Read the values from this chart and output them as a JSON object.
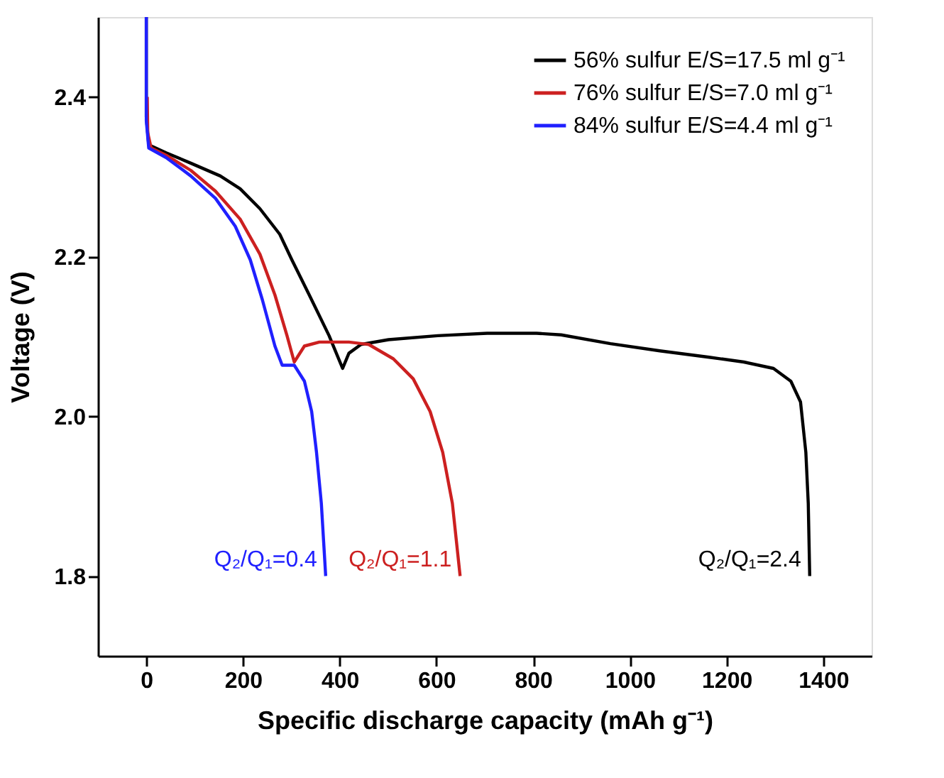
{
  "chart_data": {
    "type": "line",
    "xlabel": "Specific discharge capacity (mAh g⁻¹)",
    "ylabel": "Voltage (V)",
    "xlim": [
      -100,
      1500
    ],
    "ylim": [
      1.7,
      2.5
    ],
    "xticks": [
      0,
      200,
      400,
      600,
      800,
      1000,
      1200,
      1400
    ],
    "yticks": [
      1.8,
      {
        "value": 2.0,
        "label": "2.0"
      },
      2.2,
      2.4
    ],
    "legend": "top right",
    "grid": false,
    "marker": "none",
    "line_style": "solid",
    "series": [
      {
        "name": "56% sulfur E/S=17.5 ml g⁻¹",
        "color": "#000000",
        "x": [
          0,
          0,
          5,
          41,
          92,
          153,
          194,
          235,
          276,
          301,
          337,
          378,
          406,
          419,
          444,
          501,
          603,
          705,
          807,
          858,
          960,
          1062,
          1164,
          1236,
          1297,
          1333,
          1353,
          1364,
          1369,
          1372
        ],
        "values": [
          2.5,
          2.375,
          2.34,
          2.33,
          2.317,
          2.301,
          2.285,
          2.26,
          2.228,
          2.196,
          2.152,
          2.101,
          2.06,
          2.079,
          2.09,
          2.096,
          2.101,
          2.104,
          2.104,
          2.102,
          2.091,
          2.082,
          2.074,
          2.068,
          2.06,
          2.044,
          2.018,
          1.955,
          1.891,
          1.8
        ]
      },
      {
        "name": "76% sulfur E/S=7.0 ml g⁻¹",
        "color": "#cc2020",
        "x": [
          2,
          3,
          10,
          41,
          92,
          143,
          194,
          235,
          266,
          291,
          306,
          327,
          358,
          419,
          460,
          511,
          552,
          587,
          613,
          633,
          649
        ],
        "values": [
          2.4,
          2.355,
          2.336,
          2.327,
          2.308,
          2.282,
          2.247,
          2.203,
          2.152,
          2.101,
          2.068,
          2.088,
          2.093,
          2.093,
          2.09,
          2.072,
          2.047,
          2.006,
          1.955,
          1.891,
          1.8
        ]
      },
      {
        "name": "84% sulfur E/S=4.4 ml g⁻¹",
        "color": "#2020ff",
        "x": [
          0,
          0,
          5,
          41,
          92,
          143,
          184,
          215,
          240,
          266,
          281,
          306,
          327,
          342,
          352,
          362,
          371
        ],
        "values": [
          2.5,
          2.37,
          2.336,
          2.324,
          2.301,
          2.273,
          2.238,
          2.196,
          2.146,
          2.088,
          2.064,
          2.064,
          2.044,
          2.006,
          1.955,
          1.891,
          1.8
        ]
      }
    ],
    "annotations": [
      "Q₂/Q₁=2.4",
      "Q₂/Q₁=1.1",
      "Q₂/Q₁=0.4"
    ]
  }
}
